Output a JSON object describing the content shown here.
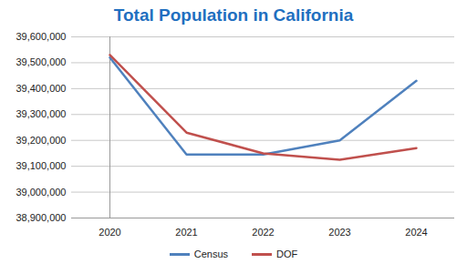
{
  "chart_data": {
    "type": "line",
    "title": "Total Population in California",
    "categories": [
      "2020",
      "2021",
      "2022",
      "2023",
      "2024"
    ],
    "series": [
      {
        "name": "Census",
        "color": "#4f81bd",
        "values": [
          39520000,
          39145000,
          39145000,
          39200000,
          39430000
        ]
      },
      {
        "name": "DOF",
        "color": "#c0504d",
        "values": [
          39530000,
          39230000,
          39150000,
          39125000,
          39170000
        ]
      }
    ],
    "ylim": [
      38900000,
      39600000
    ],
    "yticks": [
      {
        "value": 38900000,
        "label": "38,900,000"
      },
      {
        "value": 39000000,
        "label": "39,000,000"
      },
      {
        "value": 39100000,
        "label": "39,100,000"
      },
      {
        "value": 39200000,
        "label": "39,200,000"
      },
      {
        "value": 39300000,
        "label": "39,300,000"
      },
      {
        "value": 39400000,
        "label": "39,400,000"
      },
      {
        "value": 39500000,
        "label": "39,500,000"
      },
      {
        "value": 39600000,
        "label": "39,600,000"
      }
    ],
    "grid": true,
    "legend": "bottom"
  }
}
